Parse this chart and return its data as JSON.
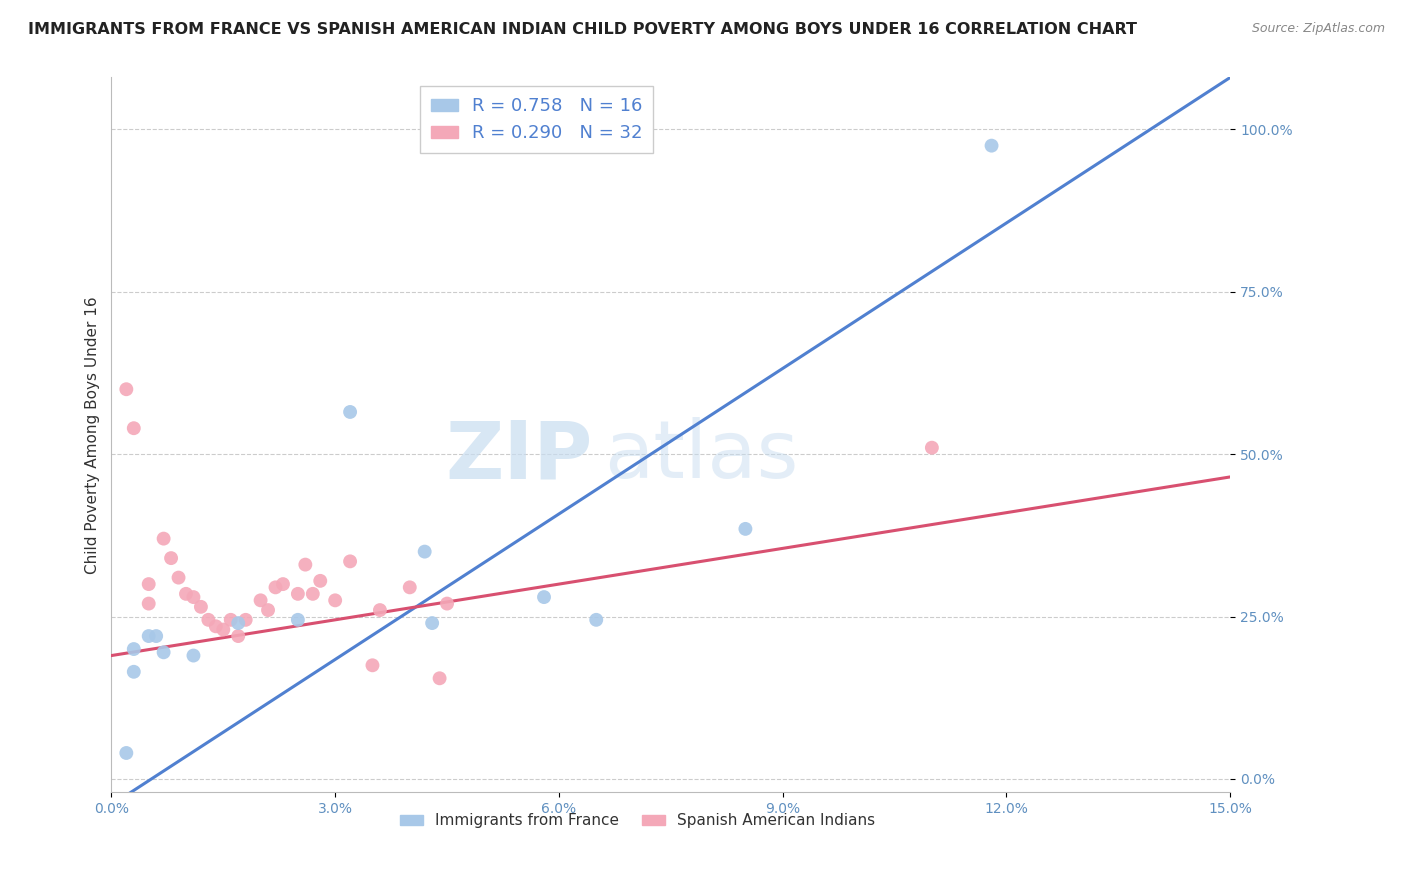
{
  "title": "IMMIGRANTS FROM FRANCE VS SPANISH AMERICAN INDIAN CHILD POVERTY AMONG BOYS UNDER 16 CORRELATION CHART",
  "source": "Source: ZipAtlas.com",
  "xlabel": "",
  "ylabel": "Child Poverty Among Boys Under 16",
  "xlim": [
    0.0,
    0.15
  ],
  "ylim": [
    -0.02,
    1.08
  ],
  "xticks": [
    0.0,
    0.03,
    0.06,
    0.09,
    0.12,
    0.15
  ],
  "xtick_labels": [
    "0.0%",
    "3.0%",
    "6.0%",
    "9.0%",
    "12.0%",
    "15.0%"
  ],
  "yticks": [
    0.0,
    0.25,
    0.5,
    0.75,
    1.0
  ],
  "ytick_labels": [
    "0.0%",
    "25.0%",
    "50.0%",
    "75.0%",
    "100.0%"
  ],
  "blue_dots_x": [
    0.032,
    0.085,
    0.002,
    0.042,
    0.043,
    0.058,
    0.003,
    0.005,
    0.007,
    0.003,
    0.011,
    0.025,
    0.017,
    0.065,
    0.006,
    0.118
  ],
  "blue_dots_y": [
    0.565,
    0.385,
    0.04,
    0.35,
    0.24,
    0.28,
    0.2,
    0.22,
    0.195,
    0.165,
    0.19,
    0.245,
    0.24,
    0.245,
    0.22,
    0.975
  ],
  "pink_dots_x": [
    0.002,
    0.005,
    0.005,
    0.007,
    0.008,
    0.009,
    0.01,
    0.011,
    0.012,
    0.013,
    0.014,
    0.015,
    0.016,
    0.017,
    0.018,
    0.02,
    0.021,
    0.022,
    0.023,
    0.025,
    0.026,
    0.027,
    0.028,
    0.03,
    0.032,
    0.035,
    0.036,
    0.04,
    0.044,
    0.045,
    0.11,
    0.003
  ],
  "pink_dots_y": [
    0.6,
    0.3,
    0.27,
    0.37,
    0.34,
    0.31,
    0.285,
    0.28,
    0.265,
    0.245,
    0.235,
    0.23,
    0.245,
    0.22,
    0.245,
    0.275,
    0.26,
    0.295,
    0.3,
    0.285,
    0.33,
    0.285,
    0.305,
    0.275,
    0.335,
    0.175,
    0.26,
    0.295,
    0.155,
    0.27,
    0.51,
    0.54
  ],
  "blue_R": 0.758,
  "blue_N": 16,
  "pink_R": 0.29,
  "pink_N": 32,
  "blue_color": "#a8c8e8",
  "pink_color": "#f4a8b8",
  "blue_line_color": "#5080d0",
  "pink_line_color": "#d85070",
  "dot_size": 100,
  "watermark_zip": "ZIP",
  "watermark_atlas": "atlas",
  "background_color": "#ffffff",
  "grid_color": "#cccccc",
  "title_color": "#222222",
  "axis_label_color": "#333333",
  "tick_color": "#6090c0",
  "legend_text_color": "#5080d0",
  "title_fontsize": 11.5,
  "label_fontsize": 11,
  "tick_fontsize": 10
}
